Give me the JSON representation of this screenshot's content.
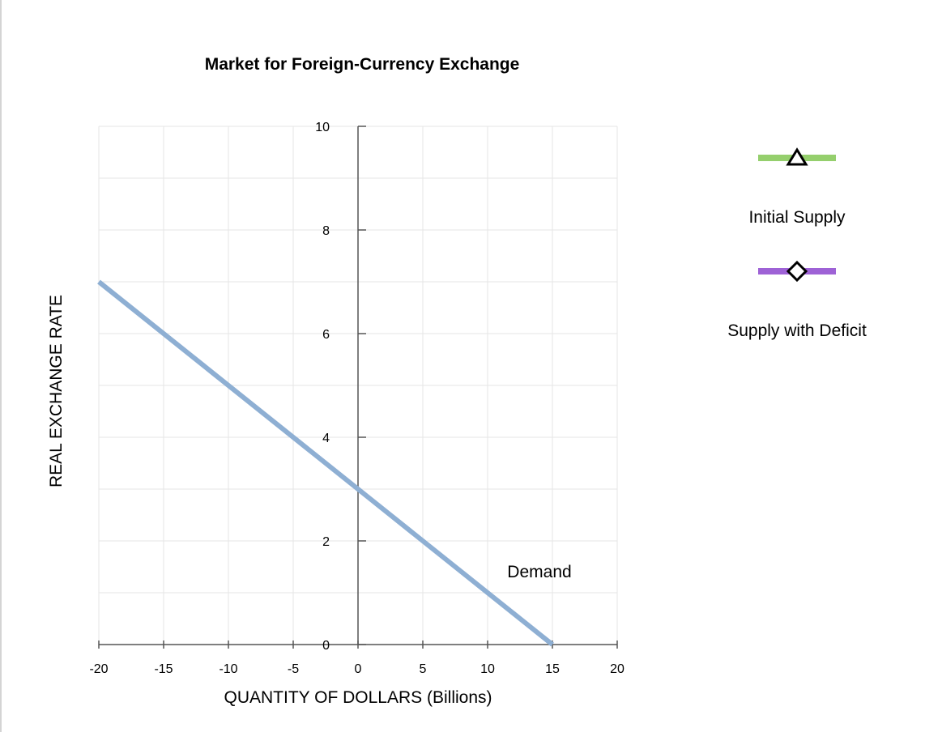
{
  "chart_data": {
    "type": "line",
    "title": "Market for Foreign-Currency Exchange",
    "xlabel": "QUANTITY OF DOLLARS (Billions)",
    "ylabel": "REAL EXCHANGE RATE",
    "xlim": [
      -20,
      20
    ],
    "ylim": [
      0,
      10
    ],
    "x_ticks": [
      "-20",
      "-15",
      "-10",
      "-5",
      "0",
      "5",
      "10",
      "15",
      "20"
    ],
    "y_ticks": [
      "0",
      "2",
      "4",
      "6",
      "8",
      "10"
    ],
    "grid": true,
    "series": [
      {
        "name": "Demand",
        "color": "#8eafd3",
        "points": [
          [
            -20,
            7
          ],
          [
            15,
            0
          ]
        ]
      }
    ],
    "annotations": [
      {
        "text": "Demand",
        "x": 14,
        "y": 1.3
      }
    ],
    "legend": {
      "placement": "right",
      "items": [
        {
          "label": "Initial Supply",
          "color": "#95cf6d",
          "marker": "triangle-icon"
        },
        {
          "label": "Supply with Deficit",
          "color": "#9e62d6",
          "marker": "diamond-icon"
        }
      ]
    }
  }
}
